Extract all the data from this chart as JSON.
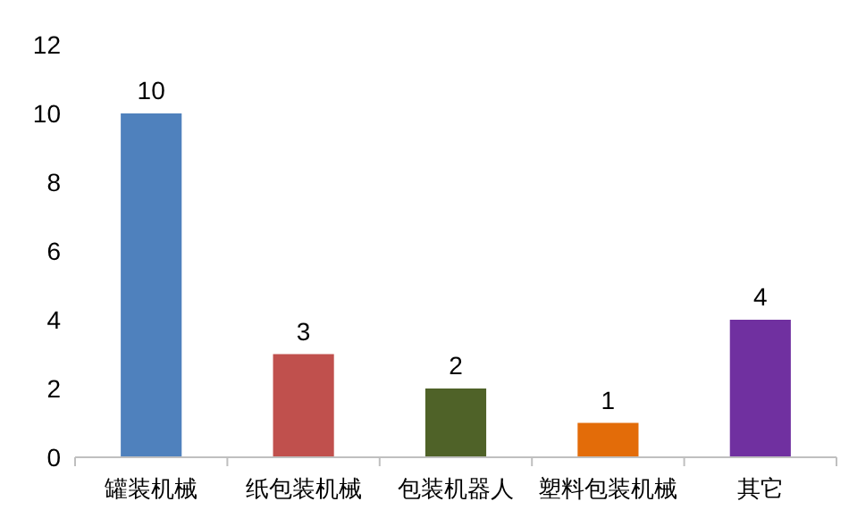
{
  "chart_data": {
    "type": "bar",
    "categories": [
      "罐装机械",
      "纸包装机械",
      "包装机器人",
      "塑料包装机械",
      "其它"
    ],
    "values": [
      10,
      3,
      2,
      1,
      4
    ],
    "colors": [
      "#4f81bd",
      "#c0504d",
      "#4f6228",
      "#e36c09",
      "#7030a0"
    ],
    "ylim": [
      0,
      12
    ],
    "yticks": [
      0,
      2,
      4,
      6,
      8,
      10,
      12
    ],
    "data_labels": true
  }
}
